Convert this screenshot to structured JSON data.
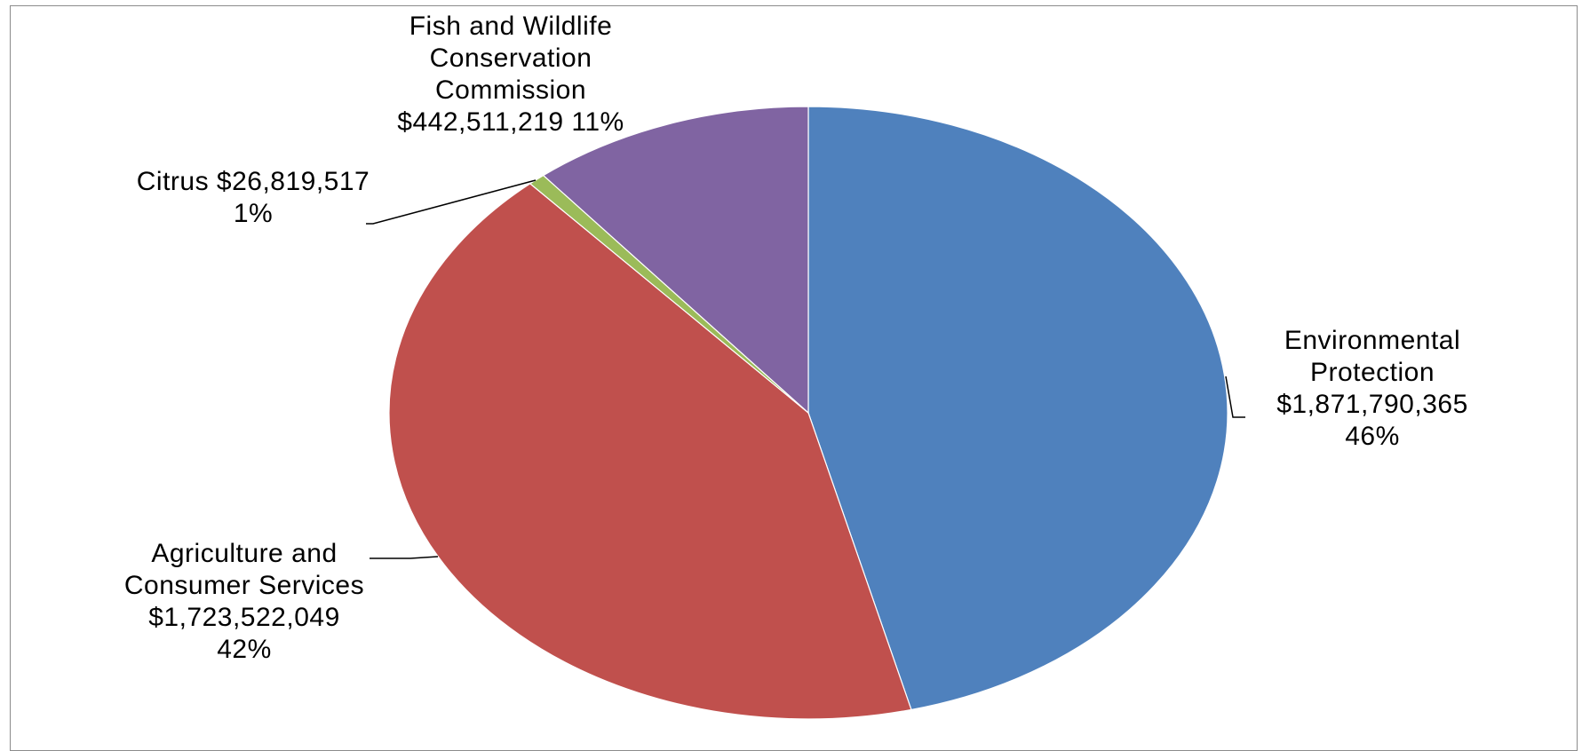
{
  "chart_data": {
    "type": "pie",
    "title": "",
    "start_angle_deg": 0,
    "direction": "clockwise",
    "slices": [
      {
        "name": "Environmental Protection",
        "value": 1871790365,
        "percent_label": "46%",
        "label": "Environmental\nProtection\n$1,871,790,365\n46%",
        "color": "#4F81BD"
      },
      {
        "name": "Agriculture and Consumer Services",
        "value": 1723522049,
        "percent_label": "42%",
        "label": "Agriculture and\nConsumer Services\n$1,723,522,049\n42%",
        "color": "#C0504D"
      },
      {
        "name": "Citrus",
        "value": 26819517,
        "percent_label": "1%",
        "label": "Citrus  $26,819,517\n1%",
        "color": "#9BBB59"
      },
      {
        "name": "Fish and Wildlife Conservation Commission",
        "value": 442511219,
        "percent_label": "11%",
        "label": "Fish and Wildlife\nConservation\nCommission\n$442,511,219  11%",
        "color": "#8064A2"
      }
    ]
  }
}
